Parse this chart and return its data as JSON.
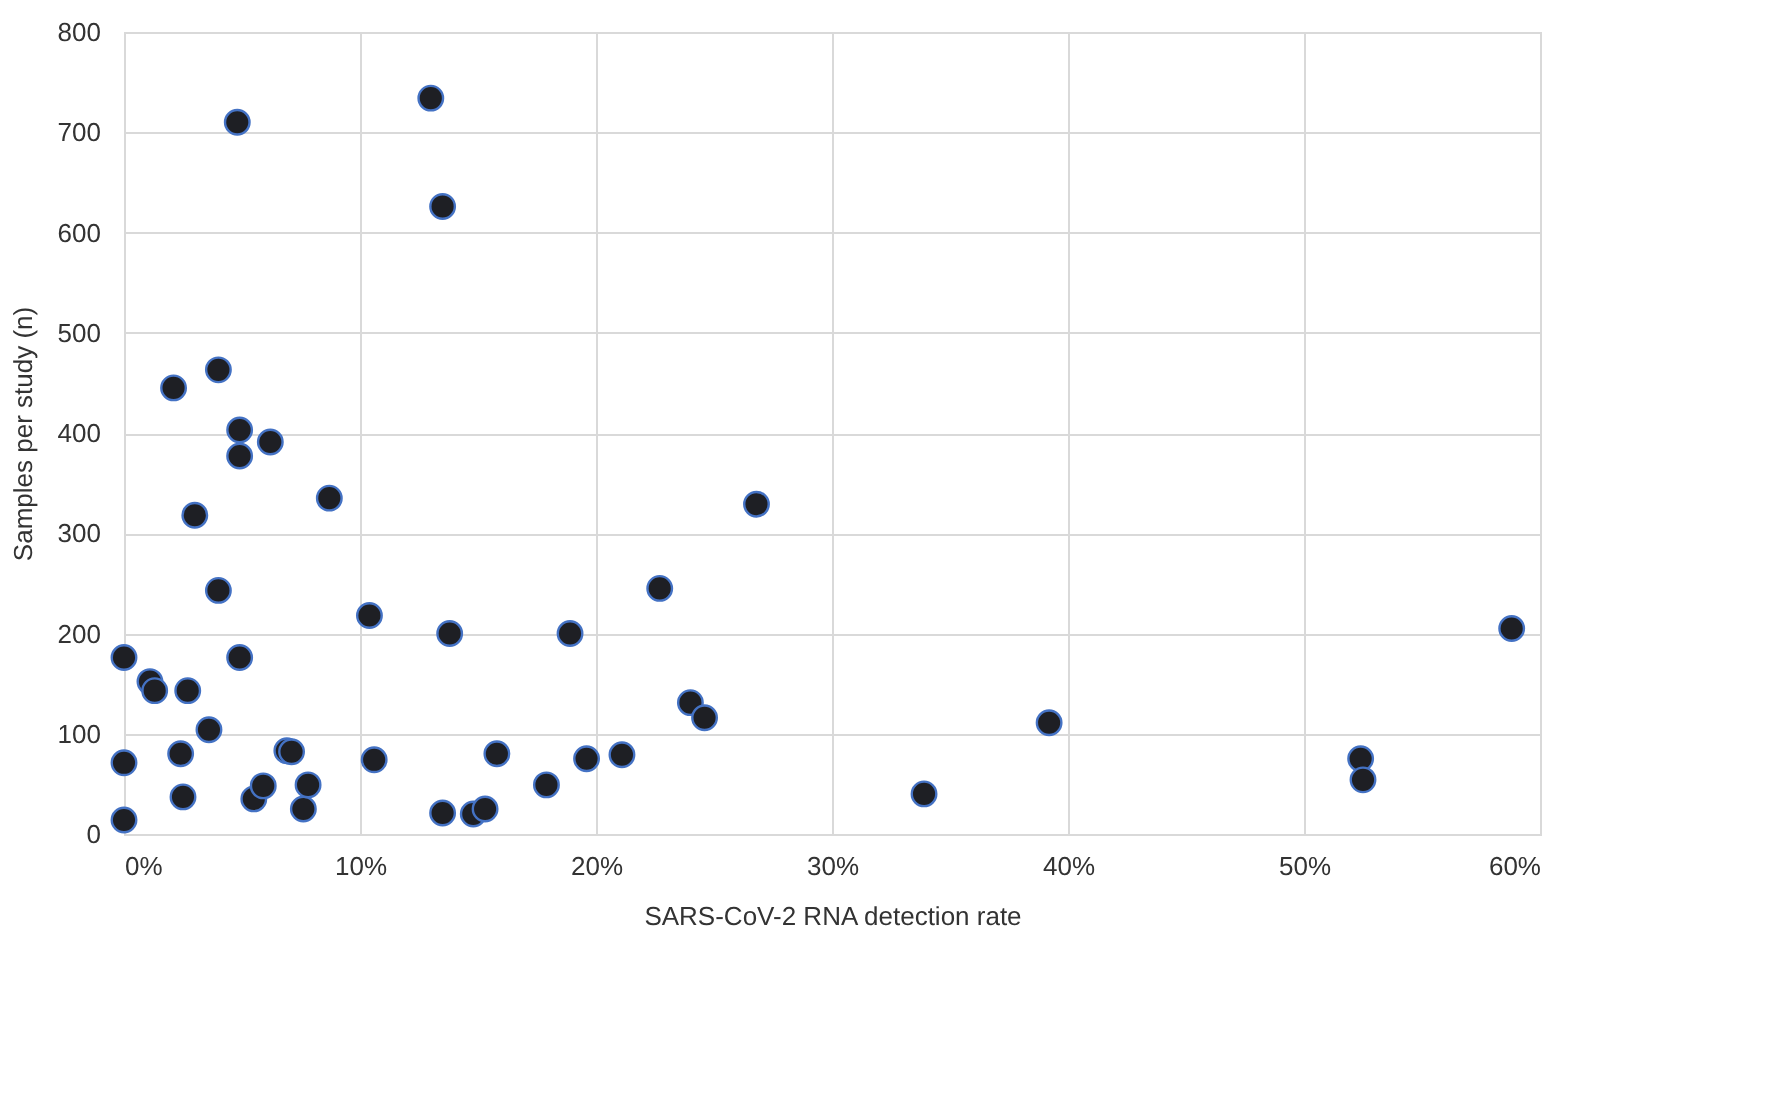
{
  "chart_data": {
    "type": "scatter",
    "xlabel": "SARS-CoV-2 RNA detection rate",
    "ylabel": "Samples per study (n)",
    "x": [
      0,
      0,
      0,
      1.1,
      1.3,
      2.1,
      2.4,
      2.5,
      2.7,
      3.0,
      3.6,
      4.0,
      4.0,
      4.8,
      4.9,
      4.9,
      4.9,
      5.5,
      5.9,
      6.2,
      6.9,
      7.1,
      7.6,
      7.8,
      8.7,
      10.4,
      10.6,
      13.0,
      13.5,
      13.5,
      13.8,
      14.8,
      15.3,
      15.8,
      17.9,
      18.9,
      19.6,
      21.1,
      22.7,
      24.0,
      24.6,
      26.8,
      33.9,
      39.2,
      52.4,
      52.5,
      58.8
    ],
    "series": [
      {
        "color": "#1e1f24",
        "values": [
          176,
          71,
          14,
          152,
          143,
          445,
          80,
          37,
          143,
          318,
          104,
          463,
          243,
          710,
          403,
          377,
          176,
          35,
          48,
          391,
          83,
          82,
          25,
          49,
          335,
          218,
          74,
          734,
          626,
          21,
          200,
          20,
          25,
          80,
          49,
          200,
          75,
          79,
          245,
          131,
          116,
          329,
          40,
          111,
          75,
          54,
          205
        ]
      }
    ],
    "marker": "circle",
    "grid": true,
    "xlim": [
      0,
      60
    ],
    "xticks": [
      {
        "value": 0,
        "label": "0%"
      },
      {
        "value": 10,
        "label": "10%"
      },
      {
        "value": 20,
        "label": "20%"
      },
      {
        "value": 30,
        "label": "30%"
      },
      {
        "value": 40,
        "label": "40%"
      },
      {
        "value": 50,
        "label": "50%"
      },
      {
        "value": 60,
        "label": "60%"
      }
    ],
    "ylim": [
      0,
      800
    ],
    "yticks": [
      0,
      100,
      200,
      300,
      400,
      500,
      600,
      700,
      800
    ]
  }
}
